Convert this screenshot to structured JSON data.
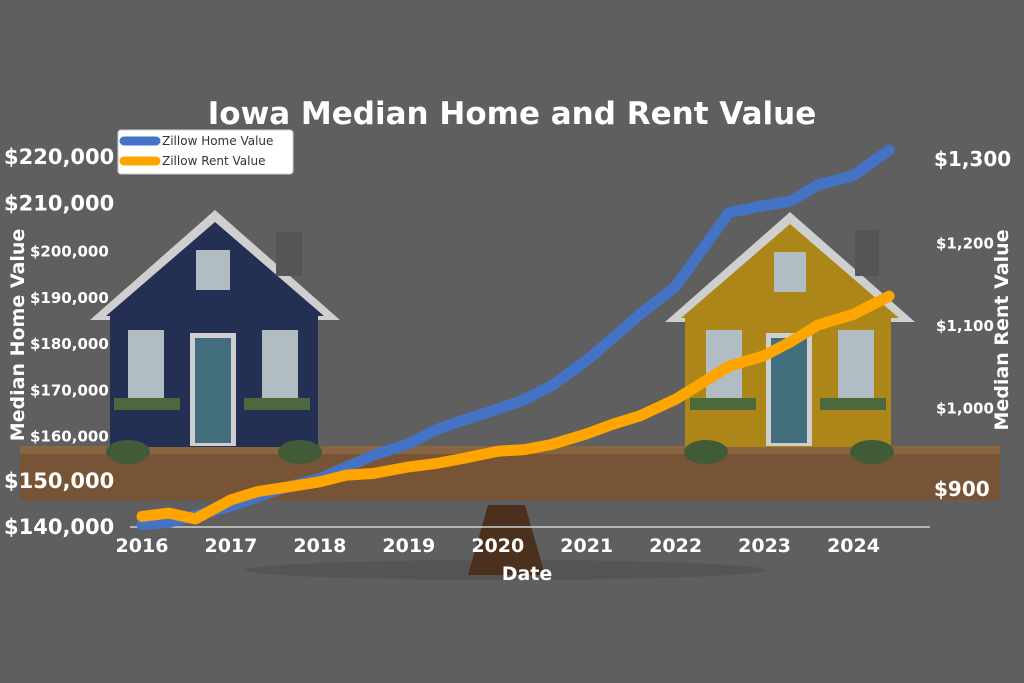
{
  "chart_data": {
    "type": "line",
    "title": "Iowa Median Home and Rent Value",
    "xlabel": "Date",
    "ylabel_left": "Median Home Value",
    "ylabel_right": "Median Rent Value",
    "x_ticks": [
      "2016",
      "2017",
      "2018",
      "2019",
      "2020",
      "2021",
      "2022",
      "2023",
      "2024"
    ],
    "y_left_ticks": [
      {
        "v": 140000,
        "label": "$140,000"
      },
      {
        "v": 150000,
        "label": "$150,000"
      },
      {
        "v": 160000,
        "label": "$160,000"
      },
      {
        "v": 170000,
        "label": "$170,000"
      },
      {
        "v": 180000,
        "label": "$180,000"
      },
      {
        "v": 190000,
        "label": "$190,000"
      },
      {
        "v": 200000,
        "label": "$200,000"
      },
      {
        "v": 210000,
        "label": "$210,000"
      },
      {
        "v": 220000,
        "label": "$220,000"
      }
    ],
    "y_right_ticks": [
      {
        "v": 900,
        "label": "$900"
      },
      {
        "v": 1000,
        "label": "$1,000"
      },
      {
        "v": 1100,
        "label": "$1,100"
      },
      {
        "v": 1200,
        "label": "$1,200"
      },
      {
        "v": 1300,
        "label": "$1,300"
      }
    ],
    "x_range": [
      2016.0,
      2024.5
    ],
    "y_left_range": [
      140000,
      220000
    ],
    "y_right_range": [
      900,
      1300
    ],
    "legend_position": "top-left",
    "grid": false,
    "series": [
      {
        "name": "Zillow Home Value",
        "axis": "left",
        "color": "#4472c4",
        "x": [
          2016.0,
          2016.3,
          2016.6,
          2017.0,
          2017.3,
          2017.6,
          2018.0,
          2018.3,
          2018.6,
          2019.0,
          2019.3,
          2019.6,
          2020.0,
          2020.3,
          2020.6,
          2021.0,
          2021.3,
          2021.6,
          2022.0,
          2022.3,
          2022.6,
          2023.0,
          2023.3,
          2023.6,
          2024.0,
          2024.4
        ],
        "values": [
          140500,
          141000,
          142500,
          144500,
          146500,
          148500,
          150500,
          153000,
          155500,
          158000,
          161000,
          163000,
          165500,
          167500,
          170500,
          176000,
          181000,
          186000,
          192000,
          200000,
          208000,
          209500,
          210500,
          214000,
          216000,
          221500
        ]
      },
      {
        "name": "Zillow Rent Value",
        "axis": "right",
        "color": "#ffa500",
        "x": [
          2016.0,
          2016.3,
          2016.6,
          2017.0,
          2017.3,
          2017.6,
          2018.0,
          2018.3,
          2018.6,
          2019.0,
          2019.3,
          2019.6,
          2020.0,
          2020.3,
          2020.6,
          2021.0,
          2021.3,
          2021.6,
          2022.0,
          2022.3,
          2022.6,
          2023.0,
          2023.3,
          2023.6,
          2024.0,
          2024.4
        ],
        "values": [
          868,
          872,
          865,
          888,
          898,
          903,
          910,
          918,
          920,
          928,
          932,
          938,
          947,
          949,
          955,
          968,
          980,
          990,
          1010,
          1030,
          1050,
          1063,
          1080,
          1100,
          1113,
          1135
        ]
      }
    ]
  }
}
